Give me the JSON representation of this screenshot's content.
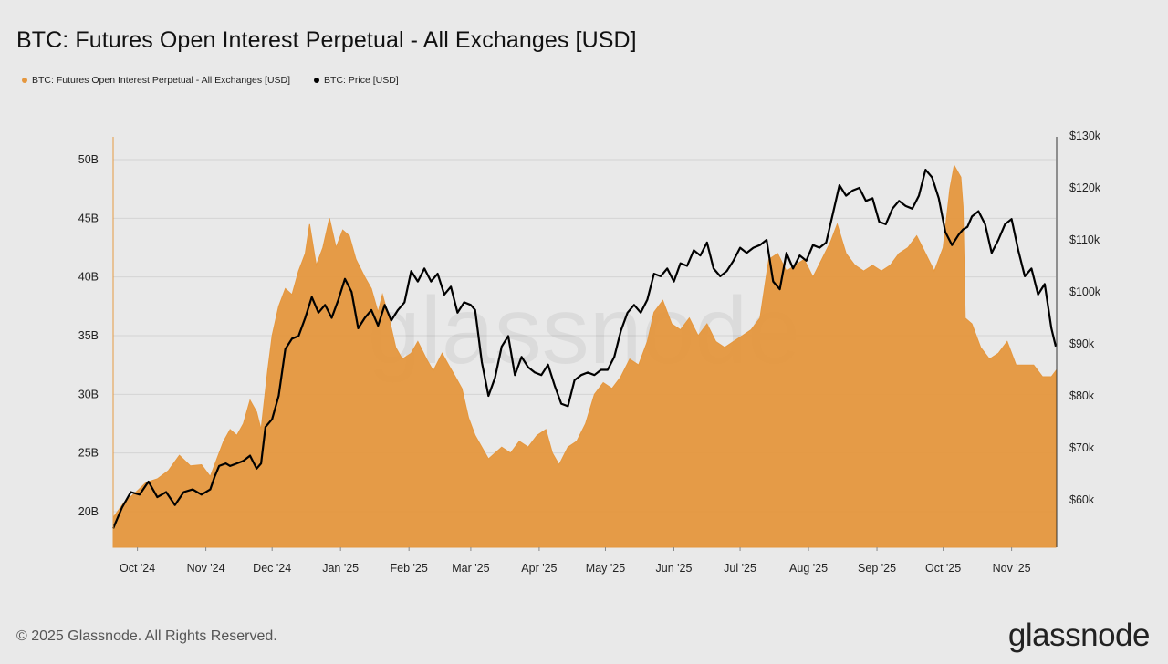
{
  "chart_data": {
    "type": "area",
    "title": "BTC: Futures Open Interest Perpetual - All Exchanges [USD]",
    "watermark": "glassnode",
    "legend_position": "top-left",
    "grid": true,
    "x_labels": [
      "Oct '24",
      "Nov '24",
      "Dec '24",
      "Jan '25",
      "Feb '25",
      "Mar '25",
      "Apr '25",
      "May '25",
      "Jun '25",
      "Jul '25",
      "Aug '25",
      "Sep '25",
      "Oct '25",
      "Nov '25"
    ],
    "x_start_month": "2024-09-20",
    "y_left": {
      "ticks": [
        "20B",
        "25B",
        "30B",
        "35B",
        "40B",
        "45B",
        "50B"
      ],
      "values": [
        20,
        25,
        30,
        35,
        40,
        45,
        50
      ],
      "unit": "billion USD",
      "range": [
        17,
        52
      ]
    },
    "y_right": {
      "ticks": [
        "$60k",
        "$70k",
        "$80k",
        "$90k",
        "$100k",
        "$110k",
        "$120k",
        "$130k"
      ],
      "values": [
        60,
        70,
        80,
        90,
        100,
        110,
        120,
        130
      ],
      "unit": "thousand USD",
      "range": [
        51,
        130
      ]
    },
    "series": [
      {
        "name": "BTC: Futures Open Interest Perpetual - All Exchanges [USD]",
        "color": "#e5973e",
        "axis": "left",
        "type": "area",
        "points": [
          [
            "2024-09-20",
            19.5
          ],
          [
            "2024-09-25",
            20.8
          ],
          [
            "2024-09-30",
            21.6
          ],
          [
            "2024-10-05",
            22.5
          ],
          [
            "2024-10-10",
            22.8
          ],
          [
            "2024-10-15",
            23.5
          ],
          [
            "2024-10-20",
            24.8
          ],
          [
            "2024-10-25",
            23.9
          ],
          [
            "2024-10-30",
            24.0
          ],
          [
            "2024-11-03",
            23.0
          ],
          [
            "2024-11-06",
            24.5
          ],
          [
            "2024-11-09",
            26.0
          ],
          [
            "2024-11-12",
            27.0
          ],
          [
            "2024-11-15",
            26.5
          ],
          [
            "2024-11-18",
            27.5
          ],
          [
            "2024-11-21",
            29.5
          ],
          [
            "2024-11-24",
            28.5
          ],
          [
            "2024-11-26",
            27.0
          ],
          [
            "2024-11-29",
            32.0
          ],
          [
            "2024-12-01",
            35.0
          ],
          [
            "2024-12-04",
            37.5
          ],
          [
            "2024-12-07",
            39.0
          ],
          [
            "2024-12-10",
            38.5
          ],
          [
            "2024-12-13",
            40.5
          ],
          [
            "2024-12-16",
            42.0
          ],
          [
            "2024-12-18",
            44.5
          ],
          [
            "2024-12-21",
            41.0
          ],
          [
            "2024-12-24",
            42.5
          ],
          [
            "2024-12-27",
            45.0
          ],
          [
            "2024-12-30",
            42.5
          ],
          [
            "2025-01-02",
            44.0
          ],
          [
            "2025-01-05",
            43.5
          ],
          [
            "2025-01-08",
            41.5
          ],
          [
            "2025-01-12",
            40.0
          ],
          [
            "2025-01-15",
            39.0
          ],
          [
            "2025-01-18",
            37.0
          ],
          [
            "2025-01-20",
            38.5
          ],
          [
            "2025-01-23",
            36.5
          ],
          [
            "2025-01-26",
            34.0
          ],
          [
            "2025-01-29",
            33.0
          ],
          [
            "2025-02-02",
            33.5
          ],
          [
            "2025-02-05",
            34.5
          ],
          [
            "2025-02-09",
            33.0
          ],
          [
            "2025-02-12",
            32.0
          ],
          [
            "2025-02-16",
            33.5
          ],
          [
            "2025-02-19",
            32.5
          ],
          [
            "2025-02-22",
            31.5
          ],
          [
            "2025-02-25",
            30.5
          ],
          [
            "2025-02-28",
            28.0
          ],
          [
            "2025-03-03",
            26.5
          ],
          [
            "2025-03-06",
            25.5
          ],
          [
            "2025-03-09",
            24.5
          ],
          [
            "2025-03-12",
            25.0
          ],
          [
            "2025-03-15",
            25.5
          ],
          [
            "2025-03-19",
            25.0
          ],
          [
            "2025-03-23",
            26.0
          ],
          [
            "2025-03-27",
            25.5
          ],
          [
            "2025-03-31",
            26.5
          ],
          [
            "2025-04-04",
            27.0
          ],
          [
            "2025-04-07",
            25.0
          ],
          [
            "2025-04-10",
            24.0
          ],
          [
            "2025-04-14",
            25.5
          ],
          [
            "2025-04-18",
            26.0
          ],
          [
            "2025-04-22",
            27.5
          ],
          [
            "2025-04-26",
            30.0
          ],
          [
            "2025-04-30",
            31.0
          ],
          [
            "2025-05-04",
            30.5
          ],
          [
            "2025-05-08",
            31.5
          ],
          [
            "2025-05-12",
            33.0
          ],
          [
            "2025-05-16",
            32.5
          ],
          [
            "2025-05-20",
            34.5
          ],
          [
            "2025-05-23",
            37.0
          ],
          [
            "2025-05-27",
            38.0
          ],
          [
            "2025-05-31",
            36.0
          ],
          [
            "2025-06-04",
            35.5
          ],
          [
            "2025-06-08",
            36.5
          ],
          [
            "2025-06-12",
            35.0
          ],
          [
            "2025-06-16",
            36.0
          ],
          [
            "2025-06-20",
            34.5
          ],
          [
            "2025-06-24",
            34.0
          ],
          [
            "2025-06-28",
            34.5
          ],
          [
            "2025-07-02",
            35.0
          ],
          [
            "2025-07-06",
            35.5
          ],
          [
            "2025-07-10",
            36.5
          ],
          [
            "2025-07-14",
            41.5
          ],
          [
            "2025-07-18",
            42.0
          ],
          [
            "2025-07-22",
            40.5
          ],
          [
            "2025-07-26",
            41.0
          ],
          [
            "2025-07-30",
            41.5
          ],
          [
            "2025-08-03",
            40.0
          ],
          [
            "2025-08-07",
            41.5
          ],
          [
            "2025-08-11",
            43.0
          ],
          [
            "2025-08-14",
            44.5
          ],
          [
            "2025-08-18",
            42.0
          ],
          [
            "2025-08-22",
            41.0
          ],
          [
            "2025-08-26",
            40.5
          ],
          [
            "2025-08-30",
            41.0
          ],
          [
            "2025-09-03",
            40.5
          ],
          [
            "2025-09-07",
            41.0
          ],
          [
            "2025-09-11",
            42.0
          ],
          [
            "2025-09-15",
            42.5
          ],
          [
            "2025-09-19",
            43.5
          ],
          [
            "2025-09-23",
            42.0
          ],
          [
            "2025-09-27",
            40.5
          ],
          [
            "2025-10-01",
            42.5
          ],
          [
            "2025-10-04",
            47.5
          ],
          [
            "2025-10-06",
            49.5
          ],
          [
            "2025-10-09",
            48.5
          ],
          [
            "2025-10-10",
            46.0
          ],
          [
            "2025-10-11",
            36.5
          ],
          [
            "2025-10-14",
            36.0
          ],
          [
            "2025-10-18",
            34.0
          ],
          [
            "2025-10-22",
            33.0
          ],
          [
            "2025-10-26",
            33.5
          ],
          [
            "2025-10-30",
            34.5
          ],
          [
            "2025-11-03",
            32.5
          ],
          [
            "2025-11-07",
            32.5
          ],
          [
            "2025-11-11",
            32.5
          ],
          [
            "2025-11-15",
            31.5
          ],
          [
            "2025-11-19",
            31.5
          ],
          [
            "2025-11-21",
            32.0
          ]
        ]
      },
      {
        "name": "BTC: Price [USD]",
        "color": "#000000",
        "axis": "right",
        "type": "line",
        "points": [
          [
            "2024-09-20",
            54.5
          ],
          [
            "2024-09-24",
            58.5
          ],
          [
            "2024-09-28",
            61.5
          ],
          [
            "2024-10-02",
            61.0
          ],
          [
            "2024-10-06",
            63.5
          ],
          [
            "2024-10-10",
            60.5
          ],
          [
            "2024-10-14",
            61.5
          ],
          [
            "2024-10-18",
            59.0
          ],
          [
            "2024-10-22",
            61.5
          ],
          [
            "2024-10-26",
            62.0
          ],
          [
            "2024-10-30",
            61.0
          ],
          [
            "2024-11-03",
            62.0
          ],
          [
            "2024-11-05",
            64.5
          ],
          [
            "2024-11-07",
            66.5
          ],
          [
            "2024-11-10",
            67.0
          ],
          [
            "2024-11-12",
            66.5
          ],
          [
            "2024-11-15",
            67.0
          ],
          [
            "2024-11-18",
            67.5
          ],
          [
            "2024-11-21",
            68.5
          ],
          [
            "2024-11-24",
            66.0
          ],
          [
            "2024-11-26",
            67.0
          ],
          [
            "2024-11-28",
            74.0
          ],
          [
            "2024-12-01",
            75.5
          ],
          [
            "2024-12-04",
            80.0
          ],
          [
            "2024-12-07",
            89.0
          ],
          [
            "2024-12-10",
            91.0
          ],
          [
            "2024-12-13",
            91.5
          ],
          [
            "2024-12-16",
            95.0
          ],
          [
            "2024-12-19",
            99.0
          ],
          [
            "2024-12-22",
            96.0
          ],
          [
            "2024-12-25",
            97.5
          ],
          [
            "2024-12-28",
            95.0
          ],
          [
            "2024-12-31",
            98.5
          ],
          [
            "2025-01-03",
            102.5
          ],
          [
            "2025-01-06",
            100.0
          ],
          [
            "2025-01-09",
            93.0
          ],
          [
            "2025-01-12",
            95.0
          ],
          [
            "2025-01-15",
            96.5
          ],
          [
            "2025-01-18",
            93.5
          ],
          [
            "2025-01-21",
            97.5
          ],
          [
            "2025-01-24",
            94.5
          ],
          [
            "2025-01-27",
            96.5
          ],
          [
            "2025-01-30",
            98.0
          ],
          [
            "2025-02-02",
            104.0
          ],
          [
            "2025-02-05",
            102.0
          ],
          [
            "2025-02-08",
            104.5
          ],
          [
            "2025-02-11",
            102.0
          ],
          [
            "2025-02-14",
            103.5
          ],
          [
            "2025-02-17",
            99.5
          ],
          [
            "2025-02-20",
            101.0
          ],
          [
            "2025-02-23",
            96.0
          ],
          [
            "2025-02-26",
            98.0
          ],
          [
            "2025-03-01",
            97.5
          ],
          [
            "2025-03-03",
            96.5
          ],
          [
            "2025-03-06",
            86.5
          ],
          [
            "2025-03-09",
            80.0
          ],
          [
            "2025-03-12",
            83.5
          ],
          [
            "2025-03-15",
            89.5
          ],
          [
            "2025-03-18",
            91.5
          ],
          [
            "2025-03-21",
            84.0
          ],
          [
            "2025-03-24",
            87.5
          ],
          [
            "2025-03-27",
            85.5
          ],
          [
            "2025-03-30",
            84.5
          ],
          [
            "2025-04-02",
            84.0
          ],
          [
            "2025-04-05",
            86.0
          ],
          [
            "2025-04-08",
            82.0
          ],
          [
            "2025-04-11",
            78.5
          ],
          [
            "2025-04-14",
            78.0
          ],
          [
            "2025-04-17",
            83.0
          ],
          [
            "2025-04-20",
            84.0
          ],
          [
            "2025-04-23",
            84.5
          ],
          [
            "2025-04-26",
            84.0
          ],
          [
            "2025-04-29",
            85.0
          ],
          [
            "2025-05-02",
            85.0
          ],
          [
            "2025-05-05",
            87.5
          ],
          [
            "2025-05-08",
            92.5
          ],
          [
            "2025-05-11",
            96.0
          ],
          [
            "2025-05-14",
            97.5
          ],
          [
            "2025-05-17",
            96.0
          ],
          [
            "2025-05-20",
            98.5
          ],
          [
            "2025-05-23",
            103.5
          ],
          [
            "2025-05-26",
            103.0
          ],
          [
            "2025-05-29",
            104.5
          ],
          [
            "2025-06-01",
            102.0
          ],
          [
            "2025-06-04",
            105.5
          ],
          [
            "2025-06-07",
            105.0
          ],
          [
            "2025-06-10",
            108.0
          ],
          [
            "2025-06-13",
            107.0
          ],
          [
            "2025-06-16",
            109.5
          ],
          [
            "2025-06-19",
            104.5
          ],
          [
            "2025-06-22",
            103.0
          ],
          [
            "2025-06-25",
            104.0
          ],
          [
            "2025-06-28",
            106.0
          ],
          [
            "2025-07-01",
            108.5
          ],
          [
            "2025-07-04",
            107.5
          ],
          [
            "2025-07-07",
            108.5
          ],
          [
            "2025-07-10",
            109.0
          ],
          [
            "2025-07-13",
            110.0
          ],
          [
            "2025-07-16",
            102.0
          ],
          [
            "2025-07-19",
            100.5
          ],
          [
            "2025-07-22",
            107.5
          ],
          [
            "2025-07-25",
            104.5
          ],
          [
            "2025-07-28",
            107.0
          ],
          [
            "2025-07-31",
            106.0
          ],
          [
            "2025-08-03",
            109.0
          ],
          [
            "2025-08-06",
            108.5
          ],
          [
            "2025-08-09",
            109.5
          ],
          [
            "2025-08-12",
            115.0
          ],
          [
            "2025-08-15",
            120.5
          ],
          [
            "2025-08-18",
            118.5
          ],
          [
            "2025-08-21",
            119.5
          ],
          [
            "2025-08-24",
            120.0
          ],
          [
            "2025-08-27",
            117.5
          ],
          [
            "2025-08-30",
            118.0
          ],
          [
            "2025-09-02",
            113.5
          ],
          [
            "2025-09-05",
            113.0
          ],
          [
            "2025-09-08",
            116.0
          ],
          [
            "2025-09-11",
            117.5
          ],
          [
            "2025-09-14",
            116.5
          ],
          [
            "2025-09-17",
            116.0
          ],
          [
            "2025-09-20",
            118.5
          ],
          [
            "2025-09-23",
            123.5
          ],
          [
            "2025-09-26",
            122.0
          ],
          [
            "2025-09-29",
            118.0
          ],
          [
            "2025-10-02",
            111.5
          ],
          [
            "2025-10-05",
            109.0
          ],
          [
            "2025-10-08",
            111.0
          ],
          [
            "2025-10-10",
            112.0
          ],
          [
            "2025-10-12",
            112.5
          ],
          [
            "2025-10-14",
            114.5
          ],
          [
            "2025-10-17",
            115.5
          ],
          [
            "2025-10-20",
            113.0
          ],
          [
            "2025-10-23",
            107.5
          ],
          [
            "2025-10-26",
            110.0
          ],
          [
            "2025-10-29",
            113.0
          ],
          [
            "2025-11-01",
            114.0
          ],
          [
            "2025-11-04",
            108.0
          ],
          [
            "2025-11-07",
            103.0
          ],
          [
            "2025-11-10",
            104.5
          ],
          [
            "2025-11-13",
            99.5
          ],
          [
            "2025-11-16",
            101.5
          ],
          [
            "2025-11-19",
            93.0
          ],
          [
            "2025-11-21",
            89.5
          ]
        ]
      }
    ]
  },
  "footer": {
    "copyright": "© 2025 Glassnode. All Rights Reserved.",
    "logo_text": "glassnode"
  }
}
